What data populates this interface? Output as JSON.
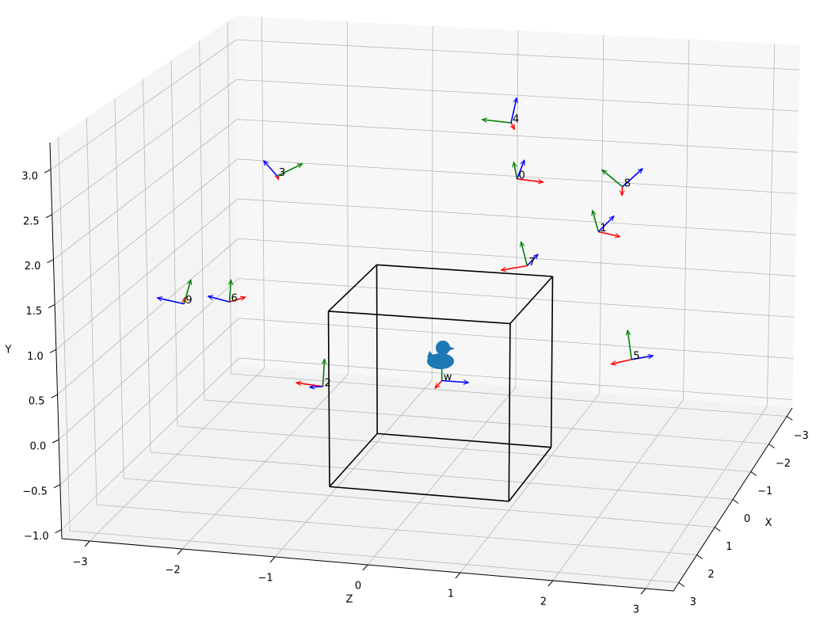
{
  "chart_data": {
    "type": "frames3d",
    "xlabel": "X",
    "ylabel": "Y",
    "zlabel": "Z",
    "xlim": [
      -3.3,
      3.3
    ],
    "ylim": [
      -1.1,
      3.3
    ],
    "zlim": [
      -3.3,
      3.3
    ],
    "xticks": [
      {
        "value": -3,
        "label": "−3"
      },
      {
        "value": -2,
        "label": "−2"
      },
      {
        "value": -1,
        "label": "−1"
      },
      0,
      1,
      2,
      3
    ],
    "yticks": [
      {
        "value": -1,
        "label": "−1.0"
      },
      {
        "value": -0.5,
        "label": "−0.5"
      },
      {
        "value": 0,
        "label": "0.0"
      },
      {
        "value": 0.5,
        "label": "0.5"
      },
      {
        "value": 1,
        "label": "1.0"
      },
      {
        "value": 1.5,
        "label": "1.5"
      },
      {
        "value": 2,
        "label": "2.0"
      },
      {
        "value": 2.5,
        "label": "2.5"
      },
      {
        "value": 3,
        "label": "3.0"
      }
    ],
    "zticks": [
      {
        "value": -3,
        "label": "−3"
      },
      {
        "value": -2,
        "label": "−2"
      },
      {
        "value": -1,
        "label": "−1"
      },
      0,
      1,
      2,
      3
    ],
    "grid": true,
    "cube": {
      "min": [
        -1,
        -1,
        -1
      ],
      "max": [
        1,
        1,
        1
      ],
      "color": "#000000"
    },
    "axis_colors": [
      "red",
      "green",
      "blue"
    ],
    "frames": [
      {
        "label": "0",
        "position": [
          0,
          2.38,
          0.83
        ],
        "axes": [
          [
            0,
            -0.02,
            0.29
          ],
          [
            0.2,
            0.24,
            0.01
          ],
          [
            0,
            0.22,
            0.08
          ]
        ]
      },
      {
        "label": "1",
        "position": [
          0,
          1.83,
          1.74
        ],
        "axes": [
          [
            0,
            -0.04,
            0.24
          ],
          [
            0,
            0.24,
            -0.07
          ],
          [
            0,
            0.19,
            0.17
          ]
        ]
      },
      {
        "label": "2",
        "position": [
          0,
          -0.17,
          -1.34
        ],
        "axes": [
          [
            0,
            0.02,
            -0.3
          ],
          [
            0,
            0.32,
            0.02
          ],
          [
            -0.25,
            -0.1,
            -0.22
          ]
        ]
      },
      {
        "label": "3",
        "position": [
          0,
          2.25,
          -1.83
        ],
        "axes": [
          [
            0.3,
            0.04,
            0.1
          ],
          [
            0,
            0.16,
            0.28
          ],
          [
            0,
            0.17,
            -0.15
          ]
        ]
      },
      {
        "label": "4",
        "position": [
          0,
          3.02,
          0.76
        ],
        "axes": [
          [
            0.3,
            0,
            0.11
          ],
          [
            0,
            0.02,
            -0.32
          ],
          [
            0,
            0.29,
            0.06
          ]
        ]
      },
      {
        "label": "5",
        "position": [
          0,
          0.4,
          2.13
        ],
        "axes": [
          [
            0,
            -0.07,
            -0.23
          ],
          [
            0,
            0.33,
            -0.05
          ],
          [
            0,
            0.06,
            0.24
          ]
        ]
      },
      {
        "label": "6",
        "position": [
          0,
          0.74,
          -2.38
        ],
        "axes": [
          [
            0,
            0.07,
            0.18
          ],
          [
            0,
            0.26,
            0.02
          ],
          [
            0,
            0.05,
            -0.24
          ]
        ]
      },
      {
        "label": "7",
        "position": [
          0,
          1.39,
          0.95
        ],
        "axes": [
          [
            0,
            -0.07,
            -0.29
          ],
          [
            0,
            0.27,
            -0.07
          ],
          [
            0,
            0.14,
            0.12
          ]
        ]
      },
      {
        "label": "8",
        "position": [
          0,
          2.36,
          2.0
        ],
        "axes": [
          [
            0.35,
            -0.01,
            0.07
          ],
          [
            0,
            0.18,
            -0.23
          ],
          [
            0,
            0.22,
            0.22
          ]
        ]
      },
      {
        "label": "9",
        "position": [
          0,
          0.68,
          -2.89
        ],
        "axes": [
          [
            -0.25,
            0,
            -0.07
          ],
          [
            0,
            0.29,
            0.08
          ],
          [
            0,
            0.05,
            -0.3
          ]
        ]
      },
      {
        "label": "w",
        "position": [
          0,
          0,
          0
        ],
        "axes": [
          [
            0.3,
            0,
            0
          ],
          [
            0,
            0.3,
            0
          ],
          [
            0,
            0,
            0.3
          ]
        ]
      }
    ]
  }
}
